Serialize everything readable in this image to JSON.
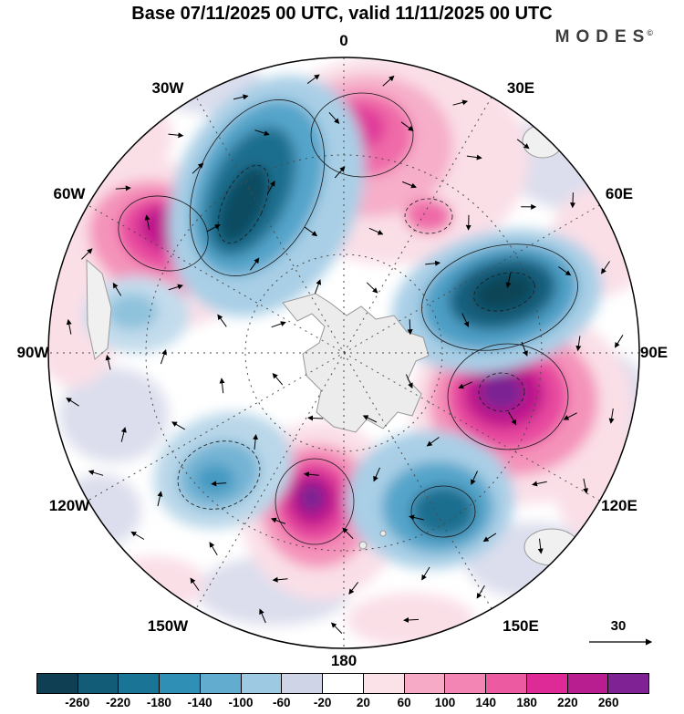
{
  "header": {
    "title": "Base 07/11/2025 00 UTC, valid 11/11/2025 00 UTC",
    "brand": "MODES",
    "brand_mark": "©"
  },
  "map": {
    "center": "South Pole / Antarctica",
    "longitude_labels": [
      "0",
      "30W",
      "30E",
      "60W",
      "60E",
      "90W",
      "90E",
      "120W",
      "120E",
      "150W",
      "150E",
      "180"
    ],
    "graticule": {
      "longitude_spacing_deg": 30,
      "style": "dashed"
    }
  },
  "vector_reference": {
    "label": "30"
  },
  "chart_data": {
    "type": "heatmap",
    "title": "Base 07/11/2025 00 UTC, valid 11/11/2025 00 UTC",
    "base_time": "07/11/2025 00 UTC",
    "valid_time": "11/11/2025 00 UTC",
    "projection": "south-polar-stereographic",
    "overlay": "anomaly wind vectors, reference magnitude 30",
    "colorbar": {
      "orientation": "horizontal",
      "tick_labels": [
        -260,
        -220,
        -180,
        -140,
        -100,
        -60,
        -20,
        20,
        60,
        100,
        140,
        180,
        220,
        260
      ],
      "colors": [
        "#0e3f52",
        "#135c77",
        "#1a7495",
        "#2f8fb5",
        "#62acd0",
        "#9ec9e2",
        "#cfd4e6",
        "#ffffff",
        "#fbe2e9",
        "#f6aac6",
        "#f285b4",
        "#ec5ba2",
        "#de2a96",
        "#b81e90",
        "#7e2294"
      ]
    },
    "anomaly_centers": [
      {
        "sign": "negative",
        "sector": "0-30W mid-latitudes (upper left)",
        "peak_band": "-260 to -220"
      },
      {
        "sign": "negative",
        "sector": "60E-90E (right)",
        "peak_band": "-260 to -220"
      },
      {
        "sign": "negative",
        "sector": "140E-160E (lower right)",
        "peak_band": "-220 to -180"
      },
      {
        "sign": "negative",
        "sector": "110W-140W (lower left)",
        "peak_band": "-140 to -100"
      },
      {
        "sign": "negative",
        "sector": "90W subpolar (left)",
        "peak_band": "-100 to -60"
      },
      {
        "sign": "positive",
        "sector": "0-20E high latitudes (top)",
        "peak_band": "140 to 180"
      },
      {
        "sign": "positive",
        "sector": "60W-80W (upper left)",
        "peak_band": "220 to 260"
      },
      {
        "sign": "positive",
        "sector": "90E-110E (lower right)",
        "peak_band": "over 260"
      },
      {
        "sign": "positive",
        "sector": "170E-170W (bottom)",
        "peak_band": "over 260"
      }
    ]
  }
}
